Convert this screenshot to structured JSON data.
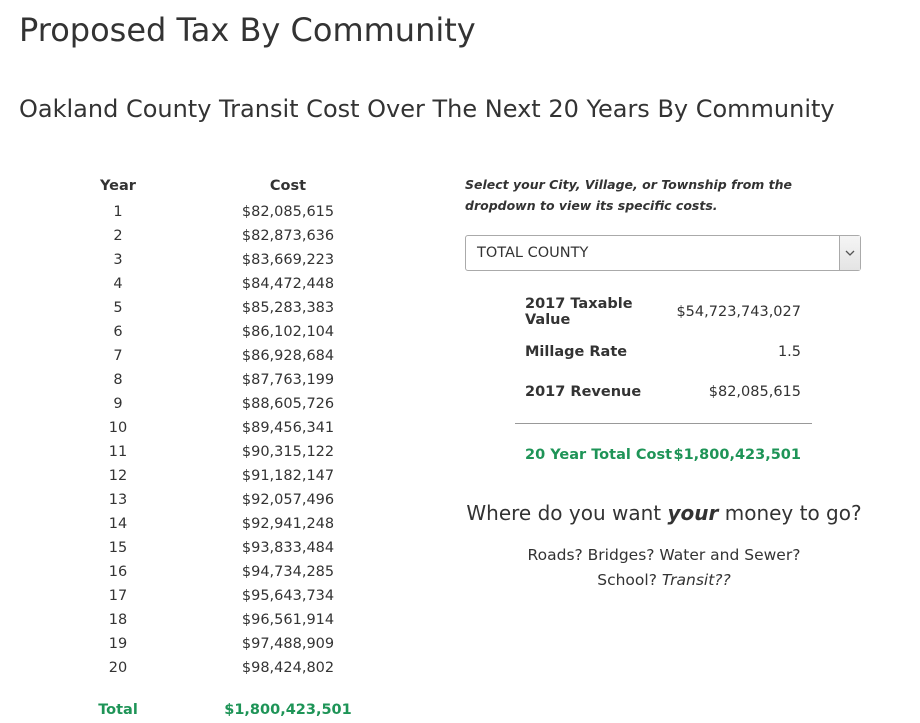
{
  "page": {
    "title": "Proposed Tax By Community",
    "subtitle": "Oakland County Transit Cost Over The Next 20 Years By Community"
  },
  "cost_table": {
    "headers": {
      "year": "Year",
      "cost": "Cost"
    },
    "rows": [
      {
        "year": "1",
        "cost": "$82,085,615"
      },
      {
        "year": "2",
        "cost": "$82,873,636"
      },
      {
        "year": "3",
        "cost": "$83,669,223"
      },
      {
        "year": "4",
        "cost": "$84,472,448"
      },
      {
        "year": "5",
        "cost": "$85,283,383"
      },
      {
        "year": "6",
        "cost": "$86,102,104"
      },
      {
        "year": "7",
        "cost": "$86,928,684"
      },
      {
        "year": "8",
        "cost": "$87,763,199"
      },
      {
        "year": "9",
        "cost": "$88,605,726"
      },
      {
        "year": "10",
        "cost": "$89,456,341"
      },
      {
        "year": "11",
        "cost": "$90,315,122"
      },
      {
        "year": "12",
        "cost": "$91,182,147"
      },
      {
        "year": "13",
        "cost": "$92,057,496"
      },
      {
        "year": "14",
        "cost": "$92,941,248"
      },
      {
        "year": "15",
        "cost": "$93,833,484"
      },
      {
        "year": "16",
        "cost": "$94,734,285"
      },
      {
        "year": "17",
        "cost": "$95,643,734"
      },
      {
        "year": "18",
        "cost": "$96,561,914"
      },
      {
        "year": "19",
        "cost": "$97,488,909"
      },
      {
        "year": "20",
        "cost": "$98,424,802"
      }
    ],
    "total": {
      "label": "Total",
      "value": "$1,800,423,501"
    }
  },
  "selector": {
    "instructions": "Select your City, Village, or Township from the dropdown to view its specific costs.",
    "selected_value": "TOTAL COUNTY",
    "arrow_icon": "chevron-down-icon"
  },
  "summary": {
    "rows": [
      {
        "label": "2017 Taxable Value",
        "value": "$54,723,743,027"
      },
      {
        "label": "Millage Rate",
        "value": "1.5"
      },
      {
        "label": "2017 Revenue",
        "value": "$82,085,615"
      }
    ],
    "total_label": "20 Year Total Cost",
    "total_value": "$1,800,423,501"
  },
  "message": {
    "question_before": "Where do you want ",
    "question_emphasis": "your",
    "question_after": " money to go?",
    "options_line1": "Roads? Bridges? Water and Sewer?",
    "options_line2_before": "School? ",
    "options_line2_emphasis": "Transit??"
  },
  "colors": {
    "accent_green": "#1e9457",
    "text": "#333333"
  }
}
